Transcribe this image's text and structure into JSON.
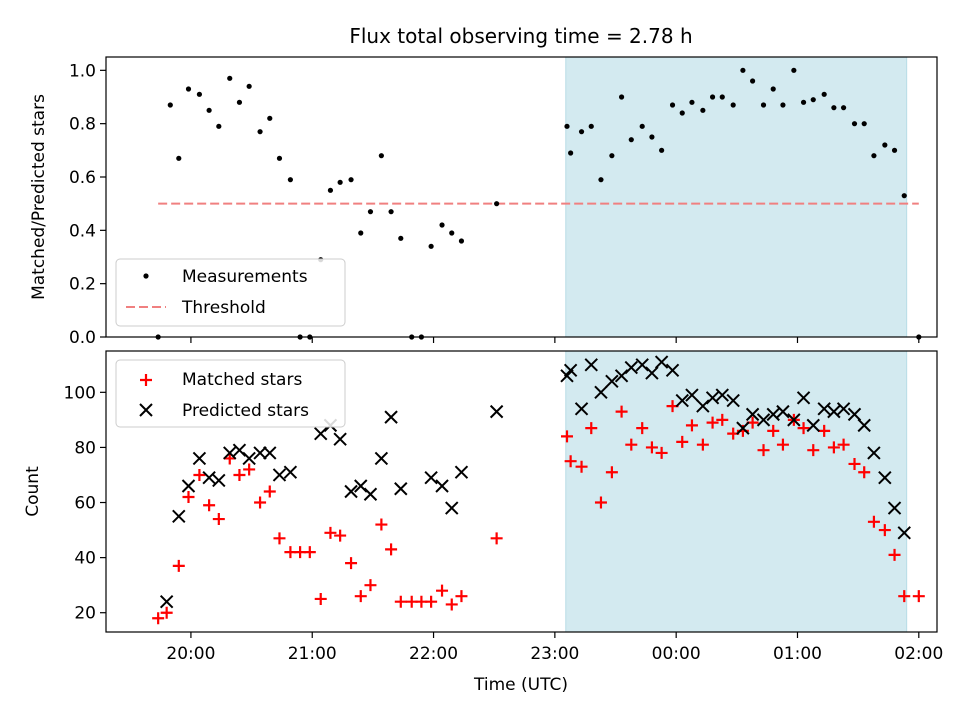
{
  "chart_data": [
    {
      "type": "scatter",
      "title": "Flux total observing time = 2.78 h",
      "ylabel": "Matched/Predicted stars",
      "xlabel": "",
      "ylim": [
        0,
        1.05
      ],
      "yticks": [
        0.0,
        0.2,
        0.4,
        0.6,
        0.8,
        1.0
      ],
      "ytick_labels": [
        "0.0",
        "0.2",
        "0.4",
        "0.6",
        "0.8",
        "1.0"
      ],
      "shaded_span": [
        23.09,
        25.9
      ],
      "shade_color": "#d3eaf0",
      "legend_position": "lower-left",
      "legend": [
        "Measurements",
        "Threshold"
      ],
      "threshold": {
        "name": "Threshold",
        "y": 0.5,
        "x_range": [
          19.73,
          26.0
        ],
        "color": "#f08080",
        "style": "dashed"
      },
      "series": [
        {
          "name": "Measurements",
          "color": "#000000",
          "marker": "dot",
          "points": [
            [
              19.73,
              0.0
            ],
            [
              19.83,
              0.87
            ],
            [
              19.9,
              0.67
            ],
            [
              19.98,
              0.93
            ],
            [
              20.07,
              0.91
            ],
            [
              20.15,
              0.85
            ],
            [
              20.23,
              0.79
            ],
            [
              20.32,
              0.97
            ],
            [
              20.4,
              0.88
            ],
            [
              20.48,
              0.94
            ],
            [
              20.57,
              0.77
            ],
            [
              20.65,
              0.82
            ],
            [
              20.73,
              0.67
            ],
            [
              20.82,
              0.59
            ],
            [
              20.9,
              0.0
            ],
            [
              20.98,
              0.0
            ],
            [
              21.07,
              0.29
            ],
            [
              21.15,
              0.55
            ],
            [
              21.23,
              0.58
            ],
            [
              21.32,
              0.59
            ],
            [
              21.4,
              0.39
            ],
            [
              21.48,
              0.47
            ],
            [
              21.57,
              0.68
            ],
            [
              21.65,
              0.47
            ],
            [
              21.73,
              0.37
            ],
            [
              21.82,
              0.0
            ],
            [
              21.9,
              0.0
            ],
            [
              21.98,
              0.34
            ],
            [
              22.07,
              0.42
            ],
            [
              22.15,
              0.39
            ],
            [
              22.23,
              0.36
            ],
            [
              22.52,
              0.5
            ],
            [
              23.1,
              0.79
            ],
            [
              23.13,
              0.69
            ],
            [
              23.22,
              0.77
            ],
            [
              23.3,
              0.79
            ],
            [
              23.38,
              0.59
            ],
            [
              23.47,
              0.68
            ],
            [
              23.55,
              0.9
            ],
            [
              23.63,
              0.74
            ],
            [
              23.72,
              0.79
            ],
            [
              23.8,
              0.75
            ],
            [
              23.88,
              0.7
            ],
            [
              23.97,
              0.87
            ],
            [
              24.05,
              0.84
            ],
            [
              24.13,
              0.88
            ],
            [
              24.22,
              0.85
            ],
            [
              24.3,
              0.9
            ],
            [
              24.38,
              0.9
            ],
            [
              24.47,
              0.87
            ],
            [
              24.55,
              1.0
            ],
            [
              24.63,
              0.96
            ],
            [
              24.72,
              0.87
            ],
            [
              24.8,
              0.93
            ],
            [
              24.88,
              0.87
            ],
            [
              24.97,
              1.0
            ],
            [
              25.05,
              0.88
            ],
            [
              25.13,
              0.89
            ],
            [
              25.22,
              0.91
            ],
            [
              25.3,
              0.86
            ],
            [
              25.38,
              0.86
            ],
            [
              25.47,
              0.8
            ],
            [
              25.55,
              0.8
            ],
            [
              25.63,
              0.68
            ],
            [
              25.72,
              0.72
            ],
            [
              25.8,
              0.7
            ],
            [
              25.88,
              0.53
            ],
            [
              26.0,
              0.0
            ]
          ]
        }
      ]
    },
    {
      "type": "scatter",
      "title": "",
      "ylabel": "Count",
      "xlabel": "Time (UTC)",
      "xlim": [
        19.3,
        26.15
      ],
      "ylim": [
        13,
        115
      ],
      "yticks": [
        20,
        40,
        60,
        80,
        100
      ],
      "ytick_labels": [
        "20",
        "40",
        "60",
        "80",
        "100"
      ],
      "xticks": [
        20,
        21,
        22,
        23,
        24,
        25,
        26
      ],
      "xtick_labels": [
        "20:00",
        "21:00",
        "22:00",
        "23:00",
        "00:00",
        "01:00",
        "02:00"
      ],
      "shaded_span": [
        23.09,
        25.9
      ],
      "shade_color": "#d3eaf0",
      "legend_position": "upper-left",
      "legend": [
        "Matched stars",
        "Predicted stars"
      ],
      "series": [
        {
          "name": "Matched stars",
          "color": "#ff0000",
          "marker": "plus",
          "points": [
            [
              19.73,
              18
            ],
            [
              19.8,
              20
            ],
            [
              19.9,
              37
            ],
            [
              19.98,
              62
            ],
            [
              20.07,
              70
            ],
            [
              20.15,
              59
            ],
            [
              20.23,
              54
            ],
            [
              20.32,
              76
            ],
            [
              20.4,
              70
            ],
            [
              20.48,
              72
            ],
            [
              20.57,
              60
            ],
            [
              20.65,
              64
            ],
            [
              20.73,
              47
            ],
            [
              20.82,
              42
            ],
            [
              20.9,
              42
            ],
            [
              20.98,
              42
            ],
            [
              21.07,
              25
            ],
            [
              21.15,
              49
            ],
            [
              21.23,
              48
            ],
            [
              21.32,
              38
            ],
            [
              21.4,
              26
            ],
            [
              21.48,
              30
            ],
            [
              21.57,
              52
            ],
            [
              21.65,
              43
            ],
            [
              21.73,
              24
            ],
            [
              21.82,
              24
            ],
            [
              21.9,
              24
            ],
            [
              21.98,
              24
            ],
            [
              22.07,
              28
            ],
            [
              22.15,
              23
            ],
            [
              22.23,
              26
            ],
            [
              22.52,
              47
            ],
            [
              23.1,
              84
            ],
            [
              23.13,
              75
            ],
            [
              23.22,
              73
            ],
            [
              23.3,
              87
            ],
            [
              23.38,
              60
            ],
            [
              23.47,
              71
            ],
            [
              23.55,
              93
            ],
            [
              23.63,
              81
            ],
            [
              23.72,
              87
            ],
            [
              23.8,
              80
            ],
            [
              23.88,
              78
            ],
            [
              23.97,
              95
            ],
            [
              24.05,
              82
            ],
            [
              24.13,
              88
            ],
            [
              24.22,
              81
            ],
            [
              24.3,
              89
            ],
            [
              24.38,
              90
            ],
            [
              24.47,
              85
            ],
            [
              24.55,
              86
            ],
            [
              24.63,
              89
            ],
            [
              24.72,
              79
            ],
            [
              24.8,
              86
            ],
            [
              24.88,
              81
            ],
            [
              24.97,
              90
            ],
            [
              25.05,
              87
            ],
            [
              25.13,
              79
            ],
            [
              25.22,
              86
            ],
            [
              25.3,
              80
            ],
            [
              25.38,
              81
            ],
            [
              25.47,
              74
            ],
            [
              25.55,
              71
            ],
            [
              25.63,
              53
            ],
            [
              25.72,
              50
            ],
            [
              25.8,
              41
            ],
            [
              25.88,
              26
            ],
            [
              26.0,
              26
            ]
          ]
        },
        {
          "name": "Predicted stars",
          "color": "#000000",
          "marker": "x",
          "points": [
            [
              19.8,
              24
            ],
            [
              19.9,
              55
            ],
            [
              19.98,
              66
            ],
            [
              20.07,
              76
            ],
            [
              20.15,
              69
            ],
            [
              20.23,
              68
            ],
            [
              20.32,
              78
            ],
            [
              20.4,
              79
            ],
            [
              20.48,
              76
            ],
            [
              20.57,
              78
            ],
            [
              20.65,
              78
            ],
            [
              20.73,
              70
            ],
            [
              20.82,
              71
            ],
            [
              21.07,
              85
            ],
            [
              21.15,
              88
            ],
            [
              21.23,
              83
            ],
            [
              21.32,
              64
            ],
            [
              21.4,
              66
            ],
            [
              21.48,
              63
            ],
            [
              21.57,
              76
            ],
            [
              21.65,
              91
            ],
            [
              21.73,
              65
            ],
            [
              21.98,
              69
            ],
            [
              22.07,
              66
            ],
            [
              22.15,
              58
            ],
            [
              22.23,
              71
            ],
            [
              22.52,
              93
            ],
            [
              23.1,
              106
            ],
            [
              23.13,
              108
            ],
            [
              23.22,
              94
            ],
            [
              23.3,
              110
            ],
            [
              23.38,
              100
            ],
            [
              23.47,
              104
            ],
            [
              23.55,
              106
            ],
            [
              23.63,
              109
            ],
            [
              23.72,
              110
            ],
            [
              23.8,
              107
            ],
            [
              23.88,
              111
            ],
            [
              23.97,
              108
            ],
            [
              24.05,
              97
            ],
            [
              24.13,
              99
            ],
            [
              24.22,
              95
            ],
            [
              24.3,
              98
            ],
            [
              24.38,
              99
            ],
            [
              24.47,
              97
            ],
            [
              24.55,
              87
            ],
            [
              24.63,
              92
            ],
            [
              24.72,
              90
            ],
            [
              24.8,
              92
            ],
            [
              24.88,
              93
            ],
            [
              24.97,
              90
            ],
            [
              25.05,
              98
            ],
            [
              25.13,
              88
            ],
            [
              25.22,
              94
            ],
            [
              25.3,
              93
            ],
            [
              25.38,
              94
            ],
            [
              25.47,
              92
            ],
            [
              25.55,
              88
            ],
            [
              25.63,
              78
            ],
            [
              25.72,
              69
            ],
            [
              25.8,
              58
            ],
            [
              25.88,
              49
            ]
          ]
        }
      ]
    }
  ]
}
